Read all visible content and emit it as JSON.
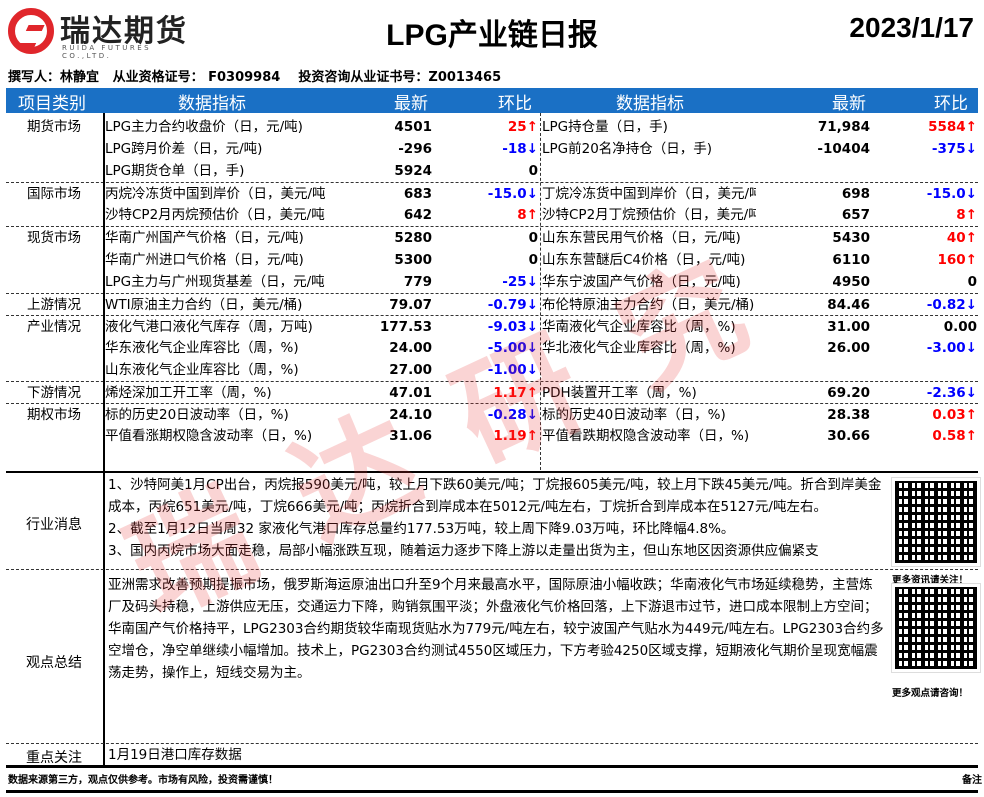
{
  "header": {
    "logo_cn": "瑞达期货",
    "logo_en": "RUIDA FUTURES CO.,LTD.",
    "title": "LPG产业链日报",
    "date": "2023/1/17",
    "author_line": "撰写人：林静宜   从业资格证号： F0309984    投资咨询从业证书号：Z0013465"
  },
  "table": {
    "headers": {
      "category": "项目类别",
      "indicator": "数据指标",
      "latest": "最新",
      "change": "环比",
      "indicator2": "数据指标",
      "latest2": "最新",
      "change2": "环比"
    },
    "rows": [
      {
        "cat": "期货市场",
        "sep": false,
        "l": [
          "LPG主力合约收盘价（日，元/吨)",
          "4501",
          "25↑",
          "up"
        ],
        "r": [
          "LPG持仓量（日，手)",
          "71,984",
          "5584↑",
          "up"
        ]
      },
      {
        "cat": "",
        "sep": false,
        "l": [
          "LPG跨月价差（日，元/吨)",
          "-296",
          "-18↓",
          "down"
        ],
        "r": [
          "LPG前20名净持仓（日，手)",
          "-10404",
          "-375↓",
          "down"
        ]
      },
      {
        "cat": "",
        "sep": false,
        "l": [
          "LPG期货仓单（日，手)",
          "5924",
          "0",
          ""
        ],
        "r": [
          "",
          "",
          "",
          ""
        ]
      },
      {
        "cat": "国际市场",
        "sep": true,
        "l": [
          "丙烷冷冻货中国到岸价（日，美元/吨",
          "683",
          "-15.0↓",
          "down"
        ],
        "r": [
          "丁烷冷冻货中国到岸价（日，美元/吨",
          "698",
          "-15.0↓",
          "down"
        ]
      },
      {
        "cat": "",
        "sep": false,
        "l": [
          "沙特CP2月丙烷预估价（日，美元/吨",
          "642",
          "8↑",
          "up"
        ],
        "r": [
          "沙特CP2月丁烷预估价（日，美元/吨",
          "657",
          "8↑",
          "up"
        ]
      },
      {
        "cat": "现货市场",
        "sep": true,
        "l": [
          "华南广州国产气价格（日，元/吨)",
          "5280",
          "0",
          ""
        ],
        "r": [
          "山东东营民用气价格（日，元/吨)",
          "5430",
          "40↑",
          "up"
        ]
      },
      {
        "cat": "",
        "sep": false,
        "l": [
          "华南广州进口气价格（日，元/吨)",
          "5300",
          "0",
          ""
        ],
        "r": [
          "山东东营醚后C4价格（日，元/吨)",
          "6110",
          "160↑",
          "up"
        ]
      },
      {
        "cat": "",
        "sep": false,
        "l": [
          "LPG主力与广州现货基差（日，元/吨",
          "779",
          "-25↓",
          "down"
        ],
        "r": [
          "华东宁波国产气价格（日，元/吨)",
          "4950",
          "0",
          ""
        ]
      },
      {
        "cat": "上游情况",
        "sep": true,
        "l": [
          "WTI原油主力合约（日，美元/桶)",
          "79.07",
          "-0.79↓",
          "down"
        ],
        "r": [
          "布伦特原油主力合约（日，美元/桶)",
          "84.46",
          "-0.82↓",
          "down"
        ]
      },
      {
        "cat": "产业情况",
        "sep": true,
        "l": [
          "液化气港口液化气库存（周，万吨)",
          "177.53",
          "-9.03↓",
          "down"
        ],
        "r": [
          "华南液化气企业库容比（周，%)",
          "31.00",
          "0.00",
          ""
        ]
      },
      {
        "cat": "",
        "sep": false,
        "l": [
          "华东液化气企业库容比（周，%)",
          "24.00",
          "-5.00↓",
          "down"
        ],
        "r": [
          "华北液化气企业库容比（周，%)",
          "26.00",
          "-3.00↓",
          "down"
        ]
      },
      {
        "cat": "",
        "sep": false,
        "l": [
          "山东液化气企业库容比（周，%)",
          "27.00",
          "-1.00↓",
          "down"
        ],
        "r": [
          "",
          "",
          "",
          ""
        ]
      },
      {
        "cat": "下游情况",
        "sep": true,
        "l": [
          "烯烃深加工开工率（周，%)",
          "47.01",
          "1.17↑",
          "up"
        ],
        "r": [
          "PDH装置开工率（周，%)",
          "69.20",
          "-2.36↓",
          "down"
        ]
      },
      {
        "cat": "期权市场",
        "sep": true,
        "l": [
          "标的历史20日波动率（日，%)",
          "24.10",
          "-0.28↓",
          "down"
        ],
        "r": [
          "标的历史40日波动率（日，%)",
          "28.38",
          "0.03↑",
          "up"
        ]
      },
      {
        "cat": "",
        "sep": false,
        "l": [
          "平值看涨期权隐含波动率（日，%)",
          "31.06",
          "1.19↑",
          "up"
        ],
        "r": [
          "平值看跌期权隐含波动率（日，%)",
          "30.66",
          "0.58↑",
          "up"
        ]
      }
    ]
  },
  "news": {
    "label": "行业消息",
    "items": [
      "1、沙特阿美1月CP出台，丙烷报590美元/吨，较上月下跌60美元/吨；丁烷报605美元/吨，较上月下跌45美元/吨。折合到岸美金成本，丙烷651美元/吨，丁烷666美元/吨；丙烷折合到岸成本在5012元/吨左右，丁烷折合到岸成本在5127元/吨左右。",
      "2、截至1月12日当周32 家液化气港口库存总量约177.53万吨，较上周下降9.03万吨，环比降幅4.8%。",
      "3、国内丙烷市场大面走稳，局部小幅涨跌互现，随着运力逐步下降上游以走量出货为主，但山东地区因资源供应偏紧支"
    ]
  },
  "view": {
    "label": "观点总结",
    "text": "亚洲需求改善预期提振市场，俄罗斯海运原油出口升至9个月来最高水平，国际原油小幅收跌；华南液化气市场延续稳势，主营炼厂及码头持稳，上游供应无压，交通运力下降，购销氛围平淡；外盘液化气价格回落，上下游退市过节，进口成本限制上方空间；华南国产气价格持平，LPG2303合约期货较华南现货贴水为779元/吨左右，较宁波国产气贴水为449元/吨左右。LPG2303合约多空增仓，净空单继续小幅增加。技术上，PG2303合约测试4550区域压力，下方考验4250区域支撑，短期液化气期价呈现宽幅震荡走势，操作上，短线交易为主。"
  },
  "focus": {
    "label": "重点关注",
    "text": "1月19日港口库存数据"
  },
  "qr": {
    "caption1": "更多资讯请关注！",
    "caption2": "更多观点请咨询！"
  },
  "footer": {
    "disclaimer": "数据来源第三方，观点仅供参考。市场有风险，投资需谨慎！",
    "right": "备注"
  },
  "watermark": "瑞达研究",
  "colors": {
    "header_bar": "#1a70c5",
    "up": "#ff0000",
    "down": "#0000ff",
    "brand": "#e0262b"
  }
}
